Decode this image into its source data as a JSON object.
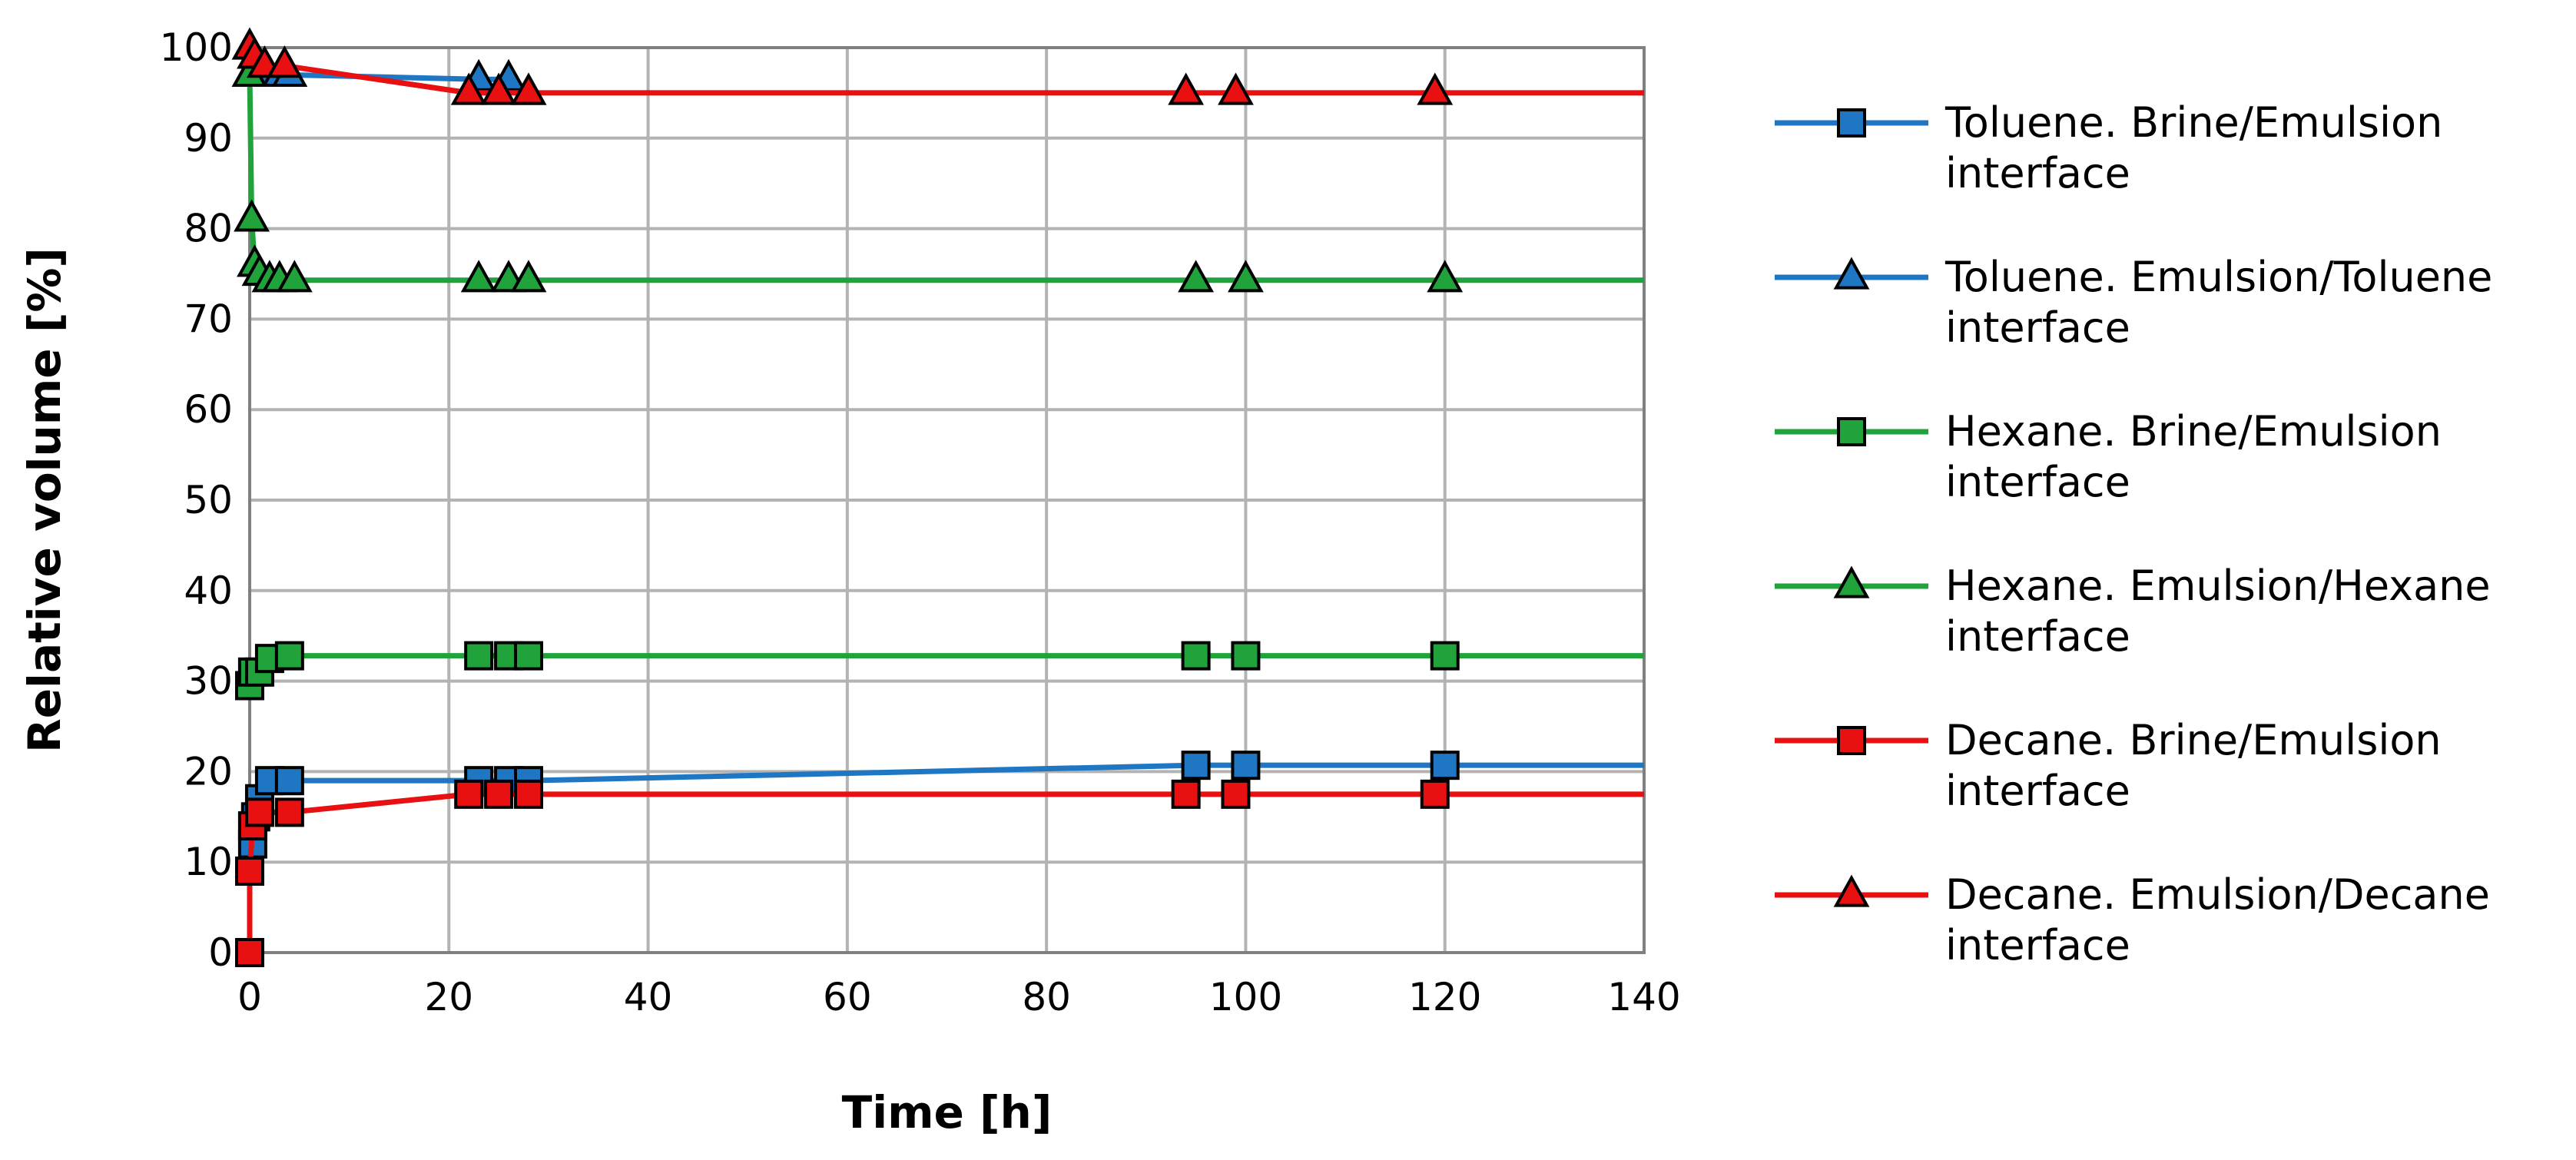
{
  "chart_data": {
    "type": "line",
    "title": "",
    "xlabel": "Time [h]",
    "ylabel": "Relative volume [%]",
    "xlim": [
      0,
      140
    ],
    "ylim": [
      0,
      100
    ],
    "xticks": [
      "0",
      "20",
      "40",
      "60",
      "80",
      "100",
      "120",
      "140"
    ],
    "yticks": [
      "0",
      "10",
      "20",
      "30",
      "40",
      "50",
      "60",
      "70",
      "80",
      "90",
      "100"
    ],
    "grid": true,
    "legend_position": "right",
    "series": [
      {
        "name_lines": [
          "Toluene. Brine/Emulsion",
          "interface"
        ],
        "color": "#1f77c4",
        "marker": "square",
        "points": [
          [
            0,
            9
          ],
          [
            0.3,
            12
          ],
          [
            0.6,
            15
          ],
          [
            1,
            17
          ],
          [
            2,
            19
          ],
          [
            4,
            19
          ],
          [
            23,
            19
          ],
          [
            26,
            19
          ],
          [
            28,
            19
          ],
          [
            95,
            20.7
          ],
          [
            100,
            20.7
          ],
          [
            120,
            20.7
          ],
          [
            140,
            20.7
          ]
        ]
      },
      {
        "name_lines": [
          "Toluene. Emulsion/Toluene",
          "interface"
        ],
        "color": "#1f77c4",
        "marker": "triangle",
        "points": [
          [
            0,
            97
          ],
          [
            1,
            97
          ],
          [
            2,
            97
          ],
          [
            3,
            97
          ],
          [
            4,
            97
          ],
          [
            23,
            96.5
          ],
          [
            26,
            96.5
          ],
          [
            28,
            95
          ]
        ]
      },
      {
        "name_lines": [
          "Hexane. Brine/Emulsion",
          "interface"
        ],
        "color": "#1fa33a",
        "marker": "square",
        "points": [
          [
            0,
            29.5
          ],
          [
            0.3,
            31
          ],
          [
            1,
            31
          ],
          [
            2,
            32.5
          ],
          [
            4,
            32.8
          ],
          [
            23,
            32.8
          ],
          [
            26,
            32.8
          ],
          [
            28,
            32.8
          ],
          [
            95,
            32.8
          ],
          [
            100,
            32.8
          ],
          [
            120,
            32.8
          ],
          [
            140,
            32.8
          ]
        ]
      },
      {
        "name_lines": [
          "Hexane. Emulsion/Hexane",
          "interface"
        ],
        "color": "#1fa33a",
        "marker": "triangle",
        "points": [
          [
            0,
            97
          ],
          [
            0.2,
            81
          ],
          [
            0.5,
            76
          ],
          [
            1,
            75
          ],
          [
            2,
            74.3
          ],
          [
            3,
            74.3
          ],
          [
            4.5,
            74.3
          ],
          [
            23,
            74.3
          ],
          [
            26,
            74.3
          ],
          [
            28,
            74.3
          ],
          [
            95,
            74.3
          ],
          [
            100,
            74.3
          ],
          [
            120,
            74.3
          ],
          [
            140,
            74.3
          ]
        ]
      },
      {
        "name_lines": [
          "Decane. Brine/Emulsion",
          "interface"
        ],
        "color": "#e81010",
        "marker": "square",
        "points": [
          [
            0,
            0
          ],
          [
            0,
            9
          ],
          [
            0.3,
            14
          ],
          [
            1,
            15.5
          ],
          [
            4,
            15.5
          ],
          [
            22,
            17.5
          ],
          [
            25,
            17.5
          ],
          [
            28,
            17.5
          ],
          [
            94,
            17.5
          ],
          [
            99,
            17.5
          ],
          [
            119,
            17.5
          ],
          [
            140,
            17.5
          ]
        ]
      },
      {
        "name_lines": [
          "Decane. Emulsion/Decane",
          "interface"
        ],
        "color": "#e81010",
        "marker": "triangle",
        "points": [
          [
            0,
            100
          ],
          [
            0.5,
            99
          ],
          [
            1.5,
            98
          ],
          [
            3.5,
            98
          ],
          [
            22,
            95
          ],
          [
            25,
            95
          ],
          [
            28,
            95
          ],
          [
            94,
            95
          ],
          [
            99,
            95
          ],
          [
            119,
            95
          ],
          [
            140,
            95
          ]
        ]
      }
    ]
  }
}
